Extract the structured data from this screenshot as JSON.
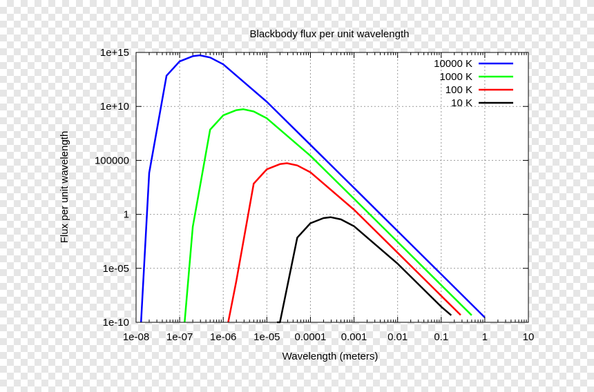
{
  "chart_data": {
    "type": "line",
    "title": "Blackbody flux per unit wavelength",
    "xlabel": "Wavelength (meters)",
    "ylabel": "Flux per unit wavelength",
    "x_scale": "log",
    "y_scale": "log",
    "xlim": [
      1e-08,
      10
    ],
    "ylim": [
      1e-10,
      1000000000000000.0
    ],
    "x_ticks": [
      {
        "value": 1e-08,
        "label": "1e-08"
      },
      {
        "value": 1e-07,
        "label": "1e-07"
      },
      {
        "value": 1e-06,
        "label": "1e-06"
      },
      {
        "value": 1e-05,
        "label": "1e-05"
      },
      {
        "value": 0.0001,
        "label": "0.0001"
      },
      {
        "value": 0.001,
        "label": "0.001"
      },
      {
        "value": 0.01,
        "label": "0.01"
      },
      {
        "value": 0.1,
        "label": "0.1"
      },
      {
        "value": 1,
        "label": "1"
      },
      {
        "value": 10,
        "label": "10"
      }
    ],
    "y_ticks": [
      {
        "value": 1e-10,
        "label": "1e-10"
      },
      {
        "value": 1e-05,
        "label": "1e-05"
      },
      {
        "value": 1,
        "label": "1"
      },
      {
        "value": 100000.0,
        "label": "100000"
      },
      {
        "value": 10000000000.0,
        "label": "1e+10"
      },
      {
        "value": 1000000000000000.0,
        "label": "1e+15"
      }
    ],
    "grid": true,
    "legend_position": "top-right",
    "series": [
      {
        "name": "10000 K",
        "color": "#0000ff",
        "x": [
          1.3e-08,
          2e-08,
          5e-08,
          1e-07,
          2e-07,
          2.9e-07,
          5e-07,
          1e-06,
          1e-05,
          0.0001,
          0.001,
          0.01,
          0.1,
          1
        ],
        "y": [
          1e-10,
          7000.0,
          7000000000000.0,
          150000000000000.0,
          450000000000000.0,
          550000000000000.0,
          340000000000000.0,
          80000000000000.0,
          27000000000.0,
          2800000.0,
          280.0,
          0.028,
          2.8e-06,
          2.8e-10
        ]
      },
      {
        "name": "1000 K",
        "color": "#00ff00",
        "x": [
          1.3e-07,
          2e-07,
          5e-07,
          1e-06,
          2e-06,
          2.9e-06,
          5e-06,
          1e-05,
          0.0001,
          0.001,
          0.01,
          0.1,
          0.5
        ],
        "y": [
          1e-10,
          0.07,
          70000000.0,
          1500000000.0,
          4500000000.0,
          5500000000.0,
          3400000000.0,
          800000000.0,
          270000.0,
          28,
          0.0028,
          2.8e-07,
          4.5e-10
        ]
      },
      {
        "name": "100 K",
        "color": "#ff0000",
        "x": [
          1.3e-06,
          2e-06,
          5e-06,
          1e-05,
          2e-05,
          2.9e-05,
          5e-05,
          0.0001,
          0.001,
          0.01,
          0.1,
          0.28
        ],
        "y": [
          1e-10,
          7e-07,
          700.0,
          15000.0,
          45000.0,
          55000.0,
          34000.0,
          8000.0,
          2.7,
          0.00028,
          2.8e-08,
          4.7e-10
        ]
      },
      {
        "name": "10 K",
        "color": "#000000",
        "x": [
          1.7e-05,
          2e-05,
          5e-05,
          0.0001,
          0.0002,
          0.00029,
          0.0005,
          0.001,
          0.01,
          0.1,
          0.17
        ],
        "y": [
          1e-10,
          7e-12,
          0.007,
          0.15,
          0.45,
          0.55,
          0.34,
          0.08,
          2.7e-05,
          2.8e-09,
          4.5e-10
        ]
      }
    ]
  }
}
